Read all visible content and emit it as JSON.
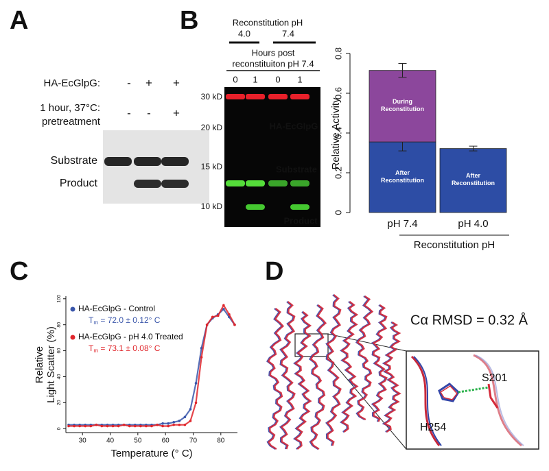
{
  "panel_labels": [
    "A",
    "B",
    "C",
    "D"
  ],
  "panel_a": {
    "rows": [
      {
        "label": [
          "HA-EcGlpG:"
        ],
        "signs": [
          "-",
          "+",
          "+"
        ]
      },
      {
        "label": [
          "1 hour, 37°C:",
          "pretreatment"
        ],
        "signs": [
          "-",
          "-",
          "+"
        ]
      }
    ],
    "bands": [
      "Substrate",
      "Product"
    ]
  },
  "panel_b_gel": {
    "header": "Reconstitution pH",
    "groups": [
      "4.0",
      "7.4"
    ],
    "subheader": [
      "Hours post",
      "reconstituiton pH 7.4"
    ],
    "lanes": [
      "0",
      "1",
      "0",
      "1"
    ],
    "markers": [
      "30 kD",
      "20 kD",
      "15 kD",
      "10 kD"
    ],
    "bands": [
      "HA-EcGlpG",
      "Substrate",
      "Product"
    ]
  },
  "chart_data": [
    {
      "type": "bar",
      "stacked": true,
      "ylabel": "Relative Activity",
      "xlabel": "Reconstitution pH",
      "categories": [
        "pH 7.4",
        "pH 4.0"
      ],
      "series": [
        {
          "name": "After Reconstitution",
          "color": "#2d4da5",
          "values": [
            0.355,
            0.322
          ],
          "errors": [
            0.045,
            0.012
          ]
        },
        {
          "name": "During Reconstitution",
          "color": "#8c479c",
          "values": [
            0.36,
            null
          ],
          "errors": [
            0.035,
            null
          ]
        }
      ],
      "ylim": [
        0,
        0.8
      ],
      "yticks": [
        0,
        0.2,
        0.4,
        0.6,
        0.8
      ]
    },
    {
      "type": "line",
      "xlabel": "Temperature (° C)",
      "ylabel": [
        "Relative",
        "Light Scatter (%)"
      ],
      "x": [
        25,
        27,
        29,
        31,
        33,
        35,
        37,
        39,
        41,
        43,
        45,
        47,
        49,
        51,
        53,
        55,
        57,
        59,
        61,
        63,
        65,
        67,
        69,
        71,
        73,
        75,
        77,
        79,
        81,
        83,
        85
      ],
      "series": [
        {
          "name": "HA-EcGlpG - Control",
          "color": "#3a56aa",
          "values": [
            3,
            3,
            3,
            3,
            3,
            3,
            3,
            3,
            3,
            3,
            3,
            3,
            3,
            3,
            3,
            3,
            3,
            4,
            4,
            5,
            6,
            9,
            15,
            35,
            62,
            80,
            85,
            88,
            92,
            86,
            80
          ],
          "tm": {
            "symbol": "T",
            "subscript": "m",
            "text": " = 72.0 ± 0.12° C"
          }
        },
        {
          "name": "HA-EcGlpG - pH 4.0 Treated",
          "color": "#e0262b",
          "values": [
            2,
            2,
            2,
            2,
            2,
            3,
            2,
            2,
            2,
            2,
            3,
            2,
            2,
            2,
            2,
            2,
            3,
            2,
            2,
            3,
            3,
            3,
            6,
            20,
            55,
            80,
            86,
            87,
            95,
            88,
            80
          ],
          "tm": {
            "symbol": "T",
            "subscript": "m",
            "text": " = 73.1 ± 0.08° C"
          }
        }
      ],
      "xlim": [
        24,
        86
      ],
      "xticks": [
        30,
        40,
        50,
        60,
        70,
        80
      ],
      "ylim": [
        -3,
        102
      ],
      "yticks": [
        0,
        20,
        40,
        60,
        80,
        100
      ]
    }
  ],
  "panel_d": {
    "annotation": "Cα RMSD = 0.32 Å",
    "residues": [
      "S201",
      "H254"
    ]
  }
}
